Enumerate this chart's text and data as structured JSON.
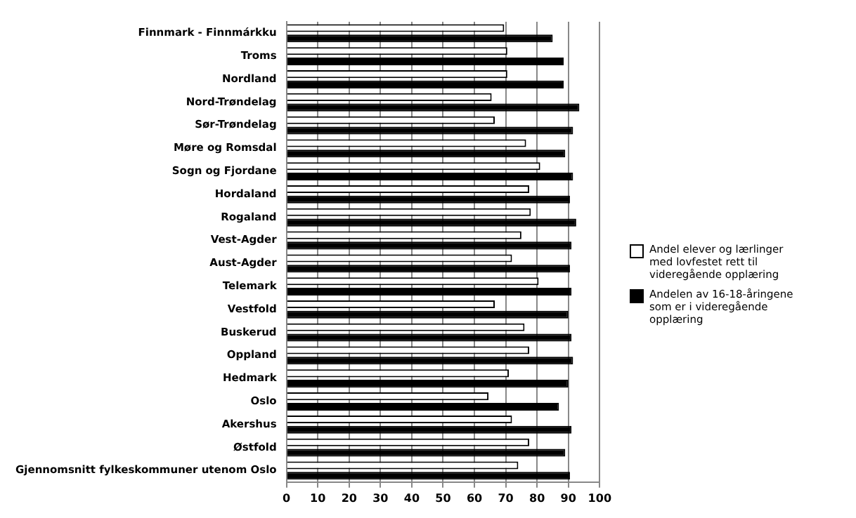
{
  "chart_data": {
    "type": "bar",
    "orientation": "horizontal",
    "categories": [
      "Finnmark - Finnmárkku",
      "Troms",
      "Nordland",
      "Nord-Trøndelag",
      "Sør-Trøndelag",
      "Møre og Romsdal",
      "Sogn og Fjordane",
      "Hordaland",
      "Rogaland",
      "Vest-Agder",
      "Aust-Agder",
      "Telemark",
      "Vestfold",
      "Buskerud",
      "Oppland",
      "Hedmark",
      "Oslo",
      "Akershus",
      "Østfold",
      "Gjennomsnitt fylkeskommuner utenom Oslo"
    ],
    "series": [
      {
        "name": "Andel elever og lærlinger med lovfestet rett til videregående opplæring",
        "color": "#ffffff",
        "values": [
          69.5,
          70.5,
          70.5,
          65.5,
          66.5,
          76.5,
          81,
          77.5,
          78,
          75,
          72,
          80.5,
          66.5,
          76,
          77.5,
          71,
          64.5,
          72,
          77.5,
          74
        ]
      },
      {
        "name": "Andelen av 16-18-åringene som er i videregående opplæring",
        "color": "#000000",
        "values": [
          85,
          88.5,
          88.5,
          93.5,
          91.5,
          89,
          91.5,
          90.5,
          92.5,
          91,
          90.5,
          91,
          90,
          91,
          91.5,
          90,
          87,
          91,
          89,
          90.5
        ]
      }
    ],
    "xlim": [
      0,
      100
    ],
    "xticks": [
      0,
      10,
      20,
      30,
      40,
      50,
      60,
      70,
      80,
      90,
      100
    ],
    "grid": "x",
    "legend": "right"
  }
}
